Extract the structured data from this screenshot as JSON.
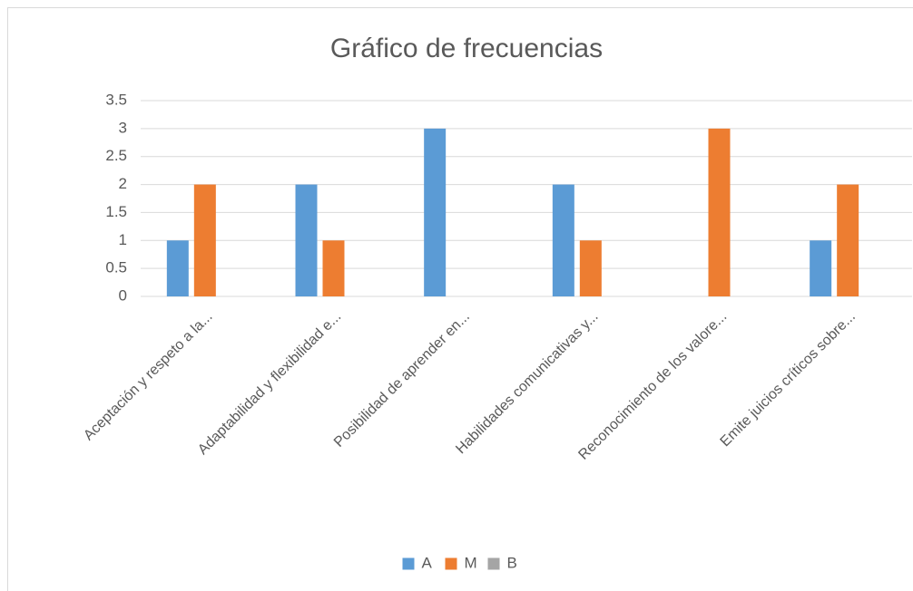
{
  "chart_data": {
    "type": "bar",
    "title": "Gráfico de frecuencias",
    "categories": [
      "Aceptación y respeto a la...",
      "Adaptabilidad y flexibilidad e...",
      "Posibilidad de aprender en...",
      "Habilidades comunicativas y...",
      "Reconocimiento de los valore...",
      "Emite juicios críticos sobre..."
    ],
    "series": [
      {
        "name": "A",
        "color": "#5b9bd5",
        "values": [
          1,
          2,
          3,
          2,
          0,
          1
        ]
      },
      {
        "name": "M",
        "color": "#ed7d31",
        "values": [
          2,
          1,
          0,
          1,
          3,
          2
        ]
      },
      {
        "name": "B",
        "color": "#a5a5a5",
        "values": [
          0,
          0,
          0,
          0,
          0,
          0
        ]
      }
    ],
    "ylim": [
      0,
      3.5
    ],
    "yticks": [
      0,
      0.5,
      1,
      1.5,
      2,
      2.5,
      3,
      3.5
    ],
    "grid": true,
    "legend": "bottom"
  }
}
